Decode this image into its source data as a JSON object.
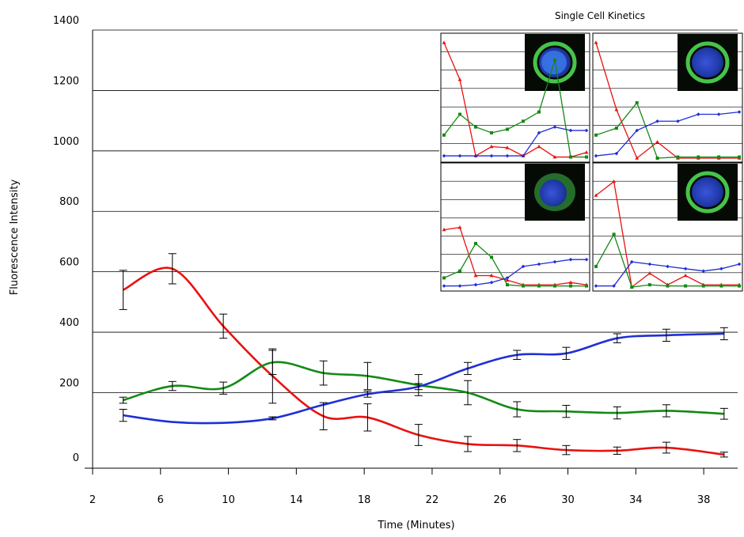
{
  "chart_data": [
    {
      "type": "line",
      "title": "",
      "xlabel": "Time (Minutes)",
      "ylabel": "Fluorescence Intensity",
      "xlim": [
        2,
        40
      ],
      "ylim": [
        -50,
        1400
      ],
      "x_ticks": [
        2,
        6,
        10,
        14,
        18,
        22,
        26,
        30,
        34,
        38
      ],
      "y_ticks": [
        0,
        200,
        400,
        600,
        800,
        1000,
        1200,
        1400
      ],
      "grid": "horizontal",
      "series": [
        {
          "color": "#e8120f",
          "x": [
            3.8,
            6.7,
            9.7,
            12.6,
            15.6,
            18.2,
            21.2,
            24.1,
            27.0,
            29.9,
            32.9,
            35.8,
            39.2
          ],
          "y": [
            540,
            610,
            420,
            255,
            122,
            118,
            60,
            30,
            25,
            10,
            8,
            18,
            -5
          ],
          "err": [
            65,
            50,
            40,
            90,
            45,
            45,
            35,
            25,
            20,
            15,
            12,
            18,
            8
          ]
        },
        {
          "color": "#138a13",
          "x": [
            3.8,
            6.7,
            9.7,
            12.6,
            15.6,
            18.2,
            21.2,
            24.1,
            27.0,
            29.9,
            32.9,
            35.8,
            39.2
          ],
          "y": [
            175,
            222,
            215,
            300,
            265,
            255,
            225,
            200,
            145,
            138,
            133,
            140,
            130
          ],
          "err": [
            10,
            15,
            20,
            40,
            40,
            45,
            35,
            40,
            25,
            20,
            20,
            20,
            18
          ]
        },
        {
          "color": "#1f2fd6",
          "x": [
            3.8,
            6.7,
            9.7,
            12.6,
            15.6,
            18.2,
            21.2,
            24.1,
            27.0,
            29.9,
            32.9,
            35.8,
            39.2
          ],
          "y": [
            125,
            103,
            100,
            115,
            160,
            195,
            220,
            280,
            325,
            330,
            380,
            390,
            395
          ],
          "err": [
            20,
            0,
            0,
            5,
            0,
            10,
            10,
            20,
            15,
            20,
            15,
            20,
            20
          ]
        }
      ]
    },
    {
      "type": "line",
      "title": "Single Cell Kinetics",
      "panels": [
        {
          "image": "cell-image-green-ring-bright-blue-nucleus",
          "series": [
            {
              "color": "#e8120f",
              "y": [
                1.0,
                0.68,
                0.02,
                0.1,
                0.09,
                0.02,
                0.1,
                0.01,
                0.01,
                0.05
              ]
            },
            {
              "color": "#138a13",
              "y": [
                0.2,
                0.38,
                0.27,
                0.22,
                0.25,
                0.32,
                0.4,
                0.85,
                0.01,
                0.01
              ]
            },
            {
              "color": "#1f2fd6",
              "y": [
                0.02,
                0.02,
                0.02,
                0.02,
                0.02,
                0.02,
                0.22,
                0.27,
                0.24,
                0.24
              ]
            }
          ]
        },
        {
          "image": "cell-image-green-ring-blue-nucleus",
          "series": [
            {
              "color": "#e8120f",
              "y": [
                1.0,
                0.42,
                0.0,
                0.14,
                0.0,
                0.0,
                0.0,
                0.0
              ]
            },
            {
              "color": "#138a13",
              "y": [
                0.2,
                0.26,
                0.48,
                0.0,
                0.01,
                0.01,
                0.01,
                0.01
              ]
            },
            {
              "color": "#1f2fd6",
              "y": [
                0.02,
                0.04,
                0.24,
                0.32,
                0.32,
                0.38,
                0.38,
                0.4
              ]
            }
          ]
        },
        {
          "image": "cell-image-diffuse-green-blue-nucleus",
          "series": [
            {
              "color": "#e8120f",
              "y": [
                0.5,
                0.52,
                0.1,
                0.1,
                0.06,
                0.02,
                0.02,
                0.02,
                0.04,
                0.02
              ]
            },
            {
              "color": "#138a13",
              "y": [
                0.08,
                0.14,
                0.38,
                0.26,
                0.02,
                0.01,
                0.01,
                0.01,
                0.01,
                0.01
              ]
            },
            {
              "color": "#1f2fd6",
              "y": [
                0.01,
                0.01,
                0.02,
                0.04,
                0.08,
                0.18,
                0.2,
                0.22,
                0.24,
                0.24
              ]
            }
          ]
        },
        {
          "image": "cell-image-green-ring-blue-nucleus-2",
          "series": [
            {
              "color": "#e8120f",
              "y": [
                0.8,
                0.92,
                0.0,
                0.12,
                0.02,
                0.1,
                0.02,
                0.02,
                0.02
              ]
            },
            {
              "color": "#138a13",
              "y": [
                0.18,
                0.46,
                0.0,
                0.02,
                0.01,
                0.01,
                0.01,
                0.01,
                0.01
              ]
            },
            {
              "color": "#1f2fd6",
              "y": [
                0.01,
                0.01,
                0.22,
                0.2,
                0.18,
                0.16,
                0.14,
                0.16,
                0.2
              ]
            }
          ]
        }
      ]
    }
  ]
}
